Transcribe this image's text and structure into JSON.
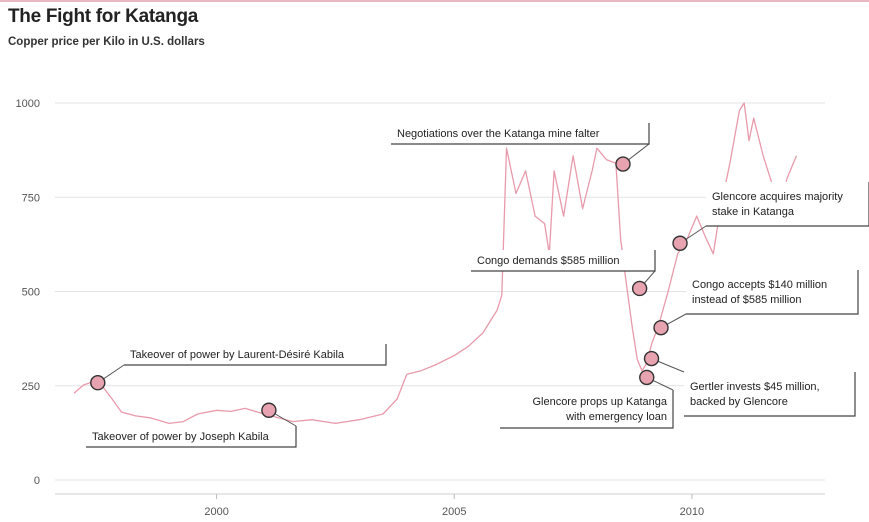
{
  "title": "The Fight for Katanga",
  "subtitle": "Copper price per Kilo in U.S. dollars",
  "colors": {
    "line": "#e89aaa",
    "marker_fill": "#e7a3b0",
    "marker_stroke": "#333333",
    "grid": "#e3e3e3",
    "rule": "#e9b7c1"
  },
  "chart_data": {
    "type": "line",
    "title": "The Fight for Katanga",
    "subtitle": "Copper price per Kilo in U.S. dollars",
    "xlabel": "",
    "ylabel": "",
    "xlim": [
      1996.6,
      2012.8
    ],
    "ylim": [
      0,
      1000
    ],
    "x_ticks": [
      2000,
      2005,
      2010
    ],
    "y_ticks": [
      0,
      250,
      500,
      750,
      1000
    ],
    "grid": "horizontal",
    "series": [
      {
        "x": [
          1997.0,
          1997.2,
          1997.5,
          1997.8,
          1998.0,
          1998.3,
          1998.6,
          1999.0,
          1999.3,
          1999.6,
          2000.0,
          2000.3,
          2000.6,
          2001.0,
          2001.3,
          2001.6,
          2002.0,
          2002.5,
          2003.0,
          2003.5,
          2003.8,
          2004.0,
          2004.3,
          2004.6,
          2005.0,
          2005.3,
          2005.6,
          2005.9,
          2006.0,
          2006.1,
          2006.3,
          2006.5,
          2006.7,
          2006.9,
          2007.0,
          2007.1,
          2007.3,
          2007.5,
          2007.7,
          2007.9,
          2008.0,
          2008.2,
          2008.4,
          2008.5,
          2008.6,
          2008.75,
          2008.85,
          2008.95,
          2009.05,
          2009.15,
          2009.3,
          2009.5,
          2009.7,
          2009.9,
          2010.1,
          2010.3,
          2010.45,
          2010.6,
          2010.8,
          2011.0,
          2011.1,
          2011.2,
          2011.3,
          2011.5,
          2011.7,
          2011.9,
          2012.0,
          2012.2
        ],
        "values": [
          230,
          252,
          265,
          215,
          180,
          170,
          165,
          150,
          155,
          175,
          185,
          182,
          190,
          175,
          165,
          155,
          160,
          150,
          160,
          175,
          215,
          280,
          290,
          305,
          330,
          355,
          390,
          450,
          490,
          880,
          760,
          820,
          700,
          680,
          600,
          820,
          700,
          860,
          720,
          820,
          880,
          850,
          840,
          640,
          540,
          400,
          320,
          290,
          310,
          360,
          410,
          500,
          600,
          640,
          700,
          640,
          600,
          720,
          840,
          980,
          1000,
          900,
          960,
          860,
          780,
          740,
          800,
          860
        ]
      }
    ],
    "markers": [
      {
        "x": 1997.5,
        "y": 258
      },
      {
        "x": 2001.1,
        "y": 185
      },
      {
        "x": 2008.55,
        "y": 838
      },
      {
        "x": 2008.9,
        "y": 508
      },
      {
        "x": 2009.05,
        "y": 272
      },
      {
        "x": 2009.15,
        "y": 322
      },
      {
        "x": 2009.35,
        "y": 404
      },
      {
        "x": 2009.75,
        "y": 628
      }
    ],
    "annotations": [
      {
        "marker": 0,
        "lines": [
          "Takeover of power by Laurent-Désiré Kabila"
        ]
      },
      {
        "marker": 1,
        "lines": [
          "Takeover of power by Joseph Kabila"
        ]
      },
      {
        "marker": 2,
        "lines": [
          "Negotiations over the Katanga mine falter"
        ]
      },
      {
        "marker": 3,
        "lines": [
          "Congo demands $585 million"
        ]
      },
      {
        "marker": 4,
        "lines": [
          "Glencore props up Katanga",
          "with emergency loan"
        ]
      },
      {
        "marker": 5,
        "lines": [
          "Gertler invests $45 million,",
          "backed by Glencore"
        ]
      },
      {
        "marker": 6,
        "lines": [
          "Congo accepts $140 million",
          "instead of $585 million"
        ]
      },
      {
        "marker": 7,
        "lines": [
          "Glencore acquires majority",
          "stake in Katanga"
        ]
      }
    ]
  }
}
